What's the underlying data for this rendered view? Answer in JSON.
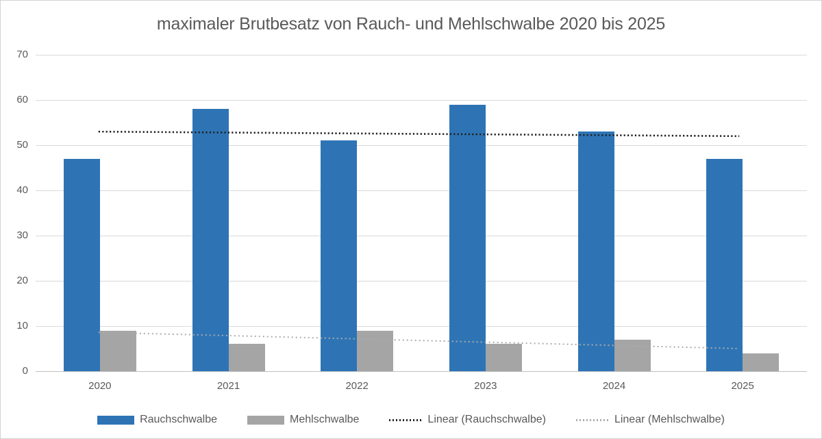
{
  "title": "maximaler Brutbesatz von Rauch- und Mehlschwalbe 2020 bis 2025",
  "colors": {
    "rauchschwalbe": "#2E74B5",
    "mehlschwalbe": "#A5A5A5",
    "linear_rauchschwalbe": "#1F1F1F",
    "linear_mehlschwalbe": "#ABABAB",
    "gridline": "#D9D9D9",
    "axis_line": "#BFBFBF",
    "text": "#595959"
  },
  "chart_data": {
    "type": "bar",
    "title": "maximaler Brutbesatz von Rauch- und Mehlschwalbe 2020 bis 2025",
    "categories": [
      "2020",
      "2021",
      "2022",
      "2023",
      "2024",
      "2025"
    ],
    "series": [
      {
        "name": "Rauchschwalbe",
        "color_key": "rauchschwalbe",
        "values": [
          47,
          58,
          51,
          59,
          53,
          47
        ]
      },
      {
        "name": "Mehlschwalbe",
        "color_key": "mehlschwalbe",
        "values": [
          9,
          6,
          9,
          6,
          7,
          4
        ]
      }
    ],
    "trendlines": [
      {
        "name": "Linear (Rauchschwalbe)",
        "color_key": "linear_rauchschwalbe",
        "start_value": 53.0,
        "end_value": 52.0
      },
      {
        "name": "Linear (Mehlschwalbe)",
        "color_key": "linear_mehlschwalbe",
        "start_value": 8.6,
        "end_value": 5.0
      }
    ],
    "xlabel": "",
    "ylabel": "",
    "ylim": [
      0,
      70
    ],
    "ytick_step": 10,
    "yticks": [
      0,
      10,
      20,
      30,
      40,
      50,
      60,
      70
    ],
    "grid": true,
    "legend_position": "bottom"
  }
}
